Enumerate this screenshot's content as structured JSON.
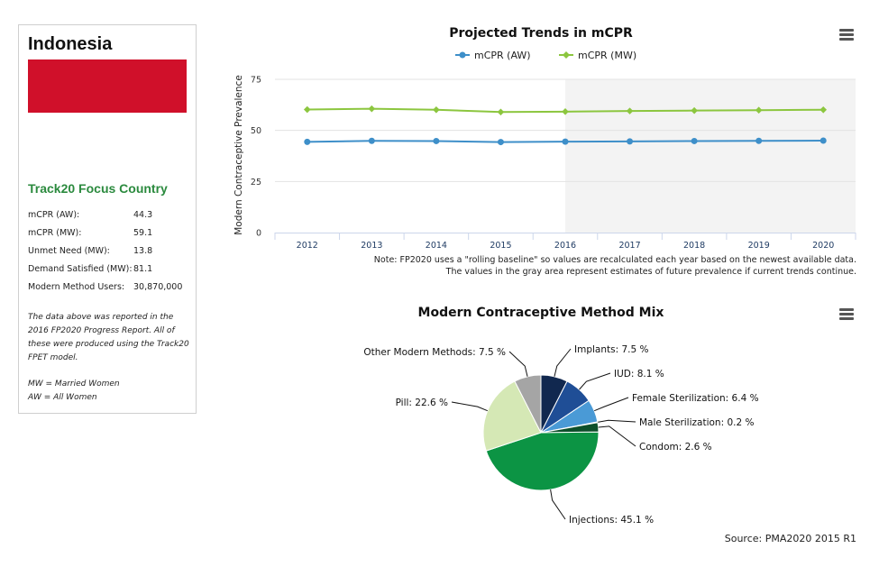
{
  "sidebar": {
    "country": "Indonesia",
    "flag_color": "#d0102a",
    "focus_label": "Track20 Focus Country",
    "stats": [
      {
        "label": "mCPR (AW):",
        "value": "44.3"
      },
      {
        "label": "mCPR (MW):",
        "value": "59.1"
      },
      {
        "label": "Unmet Need (MW):",
        "value": "13.8"
      },
      {
        "label": "Demand Satisfied (MW):",
        "value": "81.1"
      },
      {
        "label": "Modern Method Users:",
        "value": "30,870,000"
      }
    ],
    "report_note": "The data above was reported in the 2016 FP2020 Progress Report. All of these were produced using the Track20 FPET model.",
    "mw_def": "MW = Married Women",
    "aw_def": "AW = All Women"
  },
  "trend_note_1": "Note: FP2020 uses a \"rolling baseline\" so values are recalculated each year based on the newest available data.",
  "trend_note_2": "The values in the gray area represent estimates of future prevalence if current trends continue.",
  "source": "Source: PMA2020 2015 R1",
  "chart_data": [
    {
      "type": "line",
      "title": "Projected Trends in mCPR",
      "ylabel": "Modern Contraceptive Prevalence",
      "xlabel": "",
      "x": [
        "2012",
        "2013",
        "2014",
        "2015",
        "2016",
        "2017",
        "2018",
        "2019",
        "2020"
      ],
      "ylim": [
        0,
        75
      ],
      "yticks": [
        0,
        25,
        50,
        75
      ],
      "grid": true,
      "legend": "top",
      "projection_start": "2016",
      "series": [
        {
          "name": "mCPR (AW)",
          "color": "#3e8fc9",
          "values": [
            44.4,
            44.9,
            44.8,
            44.3,
            44.5,
            44.6,
            44.8,
            44.9,
            45.0
          ]
        },
        {
          "name": "mCPR (MW)",
          "color": "#8cc63f",
          "values": [
            60.2,
            60.6,
            60.1,
            59.0,
            59.2,
            59.5,
            59.7,
            59.9,
            60.1
          ]
        }
      ]
    },
    {
      "type": "pie",
      "title": "Modern Contraceptive Method Mix",
      "slices": [
        {
          "label": "Implants: 7.5 %",
          "value": 7.5,
          "color": "#11284f"
        },
        {
          "label": "IUD: 8.1 %",
          "value": 8.1,
          "color": "#1f4e96"
        },
        {
          "label": "Female Sterilization: 6.4 %",
          "value": 6.4,
          "color": "#4a9ad6"
        },
        {
          "label": "Male Sterilization: 0.2 %",
          "value": 0.2,
          "color": "#1b5b36"
        },
        {
          "label": "Condom: 2.6 %",
          "value": 2.6,
          "color": "#0d4f2a"
        },
        {
          "label": "Injections: 45.1 %",
          "value": 45.1,
          "color": "#0c9444"
        },
        {
          "label": "Pill: 22.6 %",
          "value": 22.6,
          "color": "#d5e8b5"
        },
        {
          "label": "Other Modern Methods: 7.5 %",
          "value": 7.5,
          "color": "#a5a5a5"
        }
      ]
    }
  ]
}
